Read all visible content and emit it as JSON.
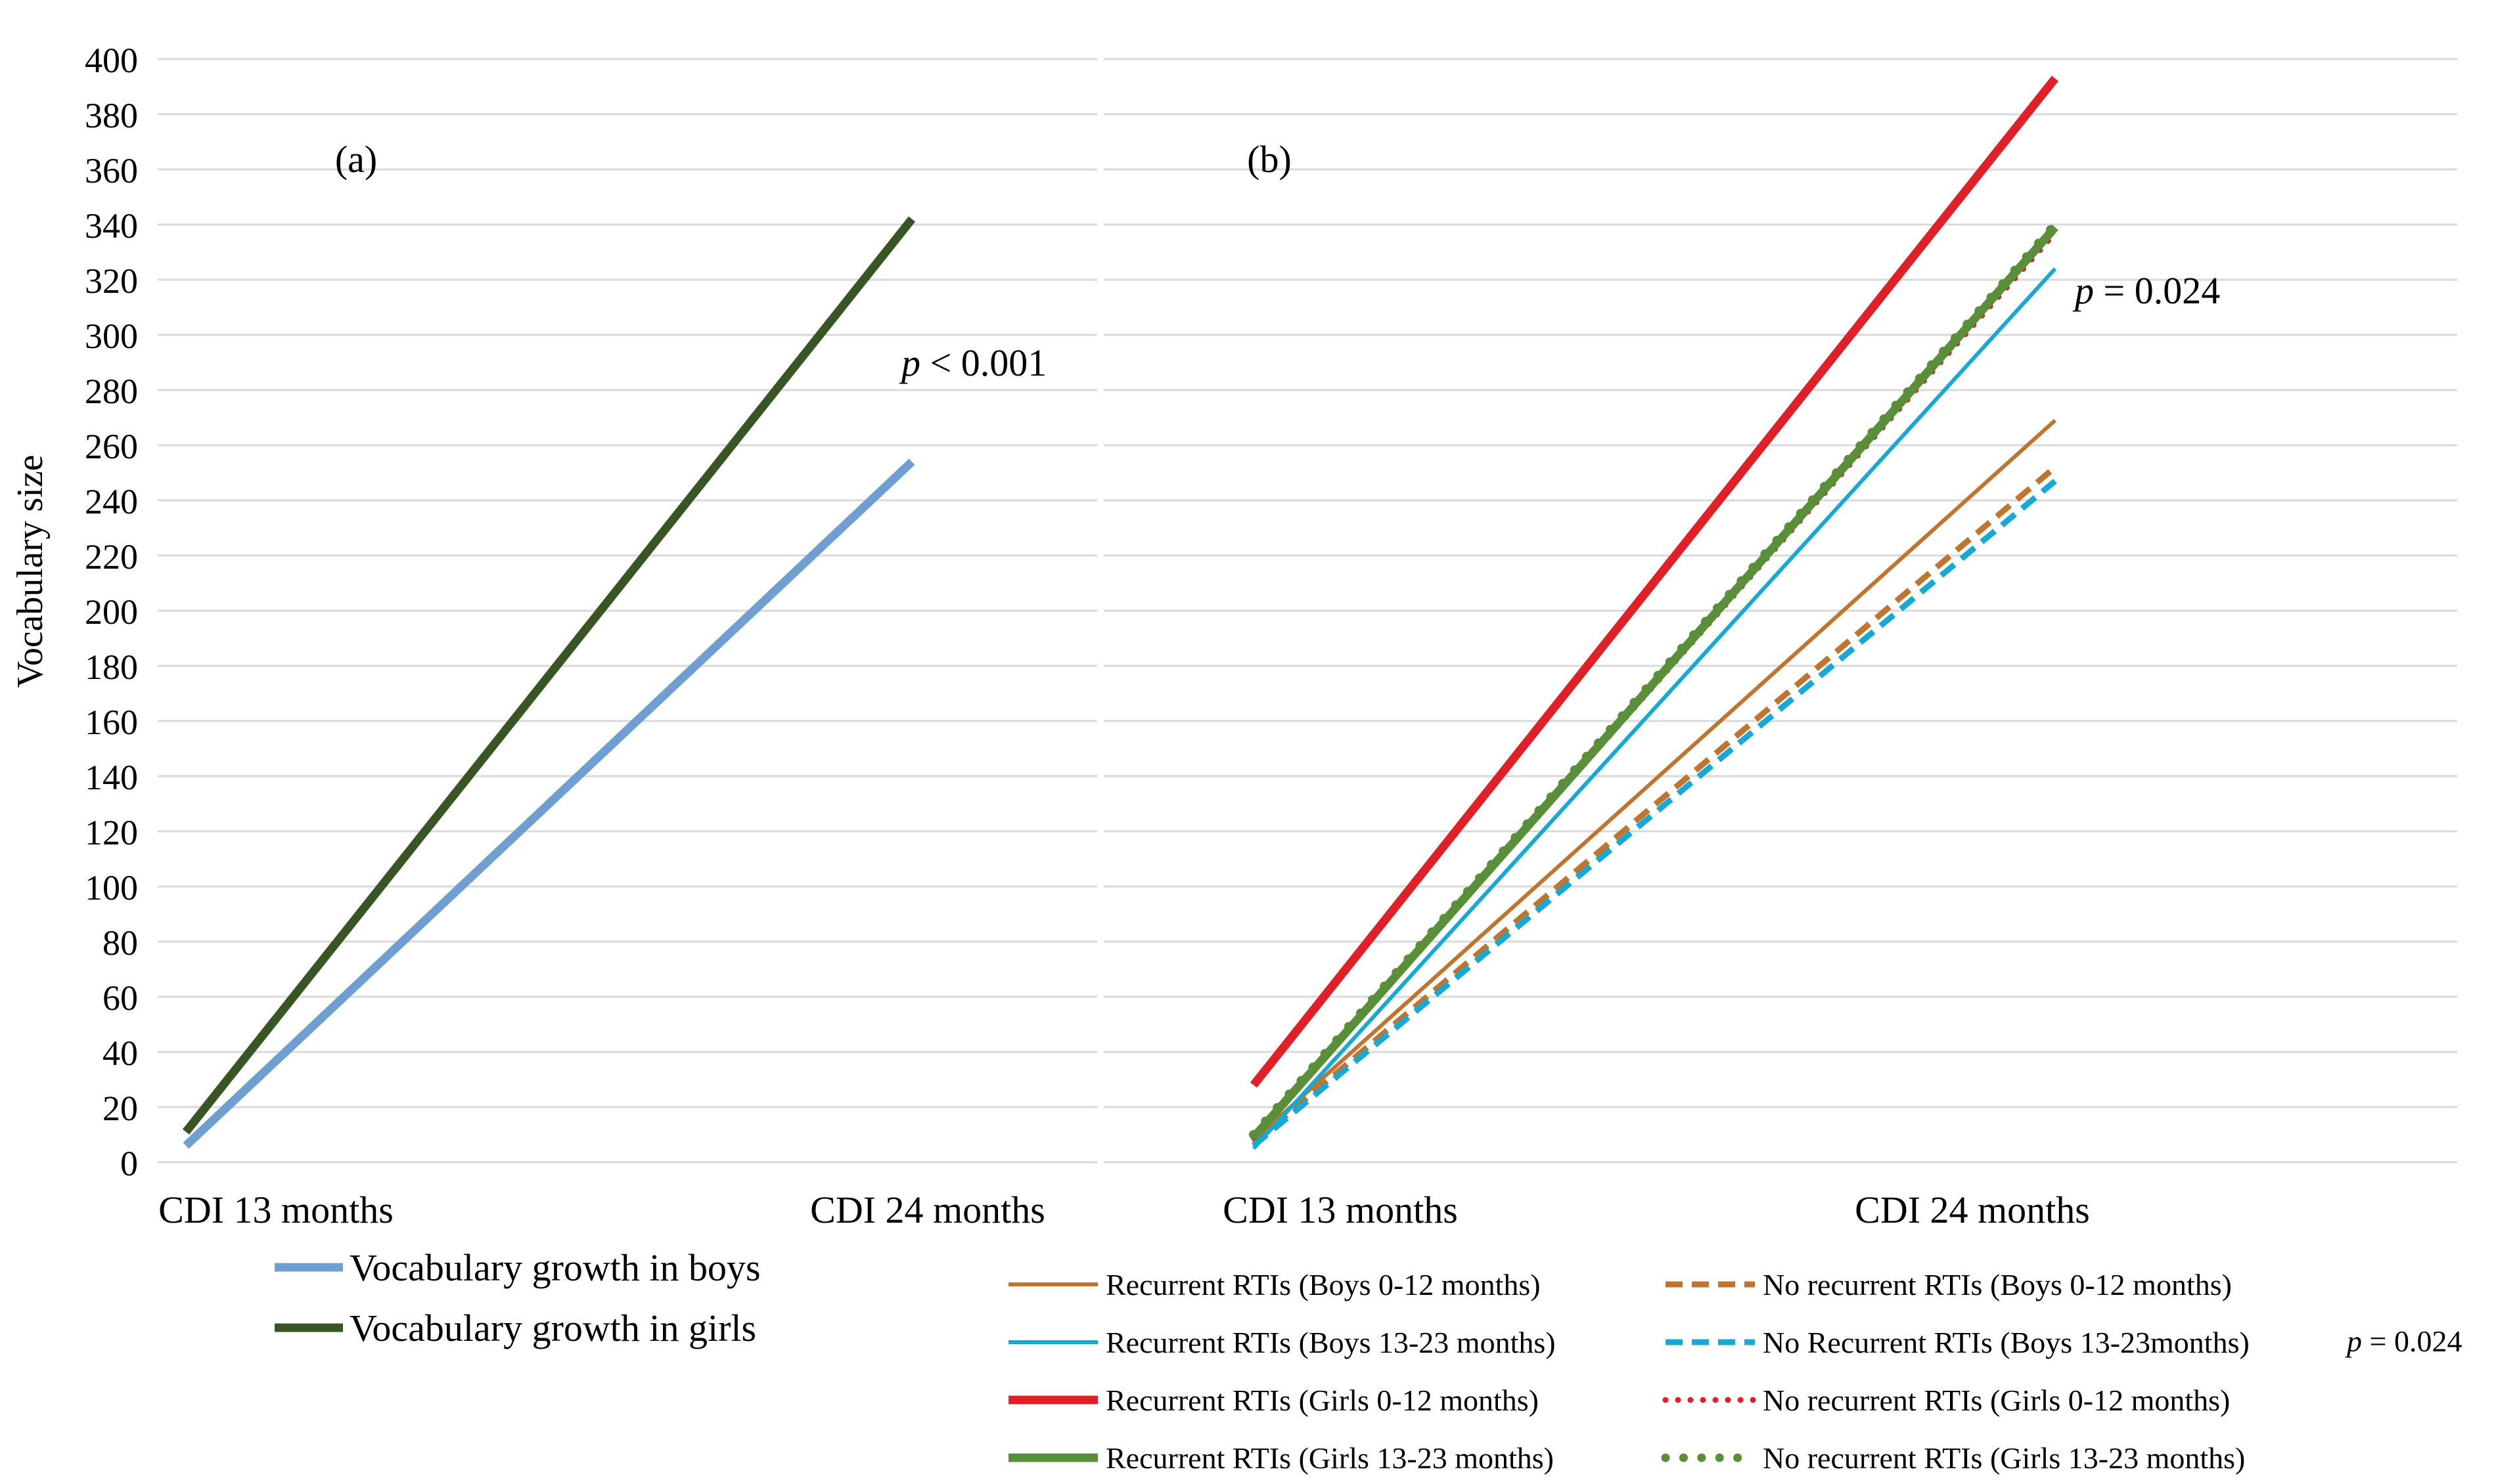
{
  "chart_data": [
    {
      "panel": "(a)",
      "type": "line",
      "x": [
        "CDI 13 months",
        "CDI 24 months"
      ],
      "ylabel": "Vocabulary size",
      "ylim": [
        0,
        400
      ],
      "yticks": [
        0,
        20,
        40,
        60,
        80,
        100,
        120,
        140,
        160,
        180,
        200,
        220,
        240,
        260,
        280,
        300,
        320,
        340,
        360,
        380,
        400
      ],
      "grid": true,
      "annotation": {
        "italic": "p",
        "rest": " < 0.001"
      },
      "series": [
        {
          "name": "Vocabulary growth in boys",
          "values": [
            6,
            254
          ],
          "color": "#6f9fd1",
          "dash": "solid",
          "weight": "thick"
        },
        {
          "name": "Vocabulary growth in girls",
          "values": [
            11,
            342
          ],
          "color": "#375623",
          "dash": "solid",
          "weight": "thick"
        }
      ]
    },
    {
      "panel": "(b)",
      "type": "line",
      "x": [
        "CDI 13 months",
        "CDI 24 months"
      ],
      "ylim": [
        0,
        400
      ],
      "grid": true,
      "annotation": {
        "italic": "p",
        "rest": " = 0.024"
      },
      "legend_note": {
        "italic": "p",
        "rest": " = 0.024"
      },
      "series": [
        {
          "name": "Recurrent RTIs (Boys 0-12 months)",
          "values": [
            8,
            269
          ],
          "color": "#c0752f",
          "dash": "solid",
          "weight": "thin"
        },
        {
          "name": "No recurrent RTIs (Boys 0-12 months)",
          "values": [
            7,
            252
          ],
          "color": "#c0752f",
          "dash": "dashed",
          "weight": "medium"
        },
        {
          "name": "Recurrent RTIs (Boys 13-23 months)",
          "values": [
            5,
            324
          ],
          "color": "#17a9d6",
          "dash": "solid",
          "weight": "thin"
        },
        {
          "name": "No Recurrent RTIs (Boys 13-23months)",
          "values": [
            6,
            247
          ],
          "color": "#17a9d6",
          "dash": "dashed",
          "weight": "medium"
        },
        {
          "name": "Recurrent RTIs (Girls 0-12 months)",
          "values": [
            28,
            393
          ],
          "color": "#e01f26",
          "dash": "solid",
          "weight": "thick"
        },
        {
          "name": "No recurrent RTIs (Girls 0-12 months)",
          "values": [
            9,
            337
          ],
          "color": "#e01f26",
          "dash": "dotted",
          "weight": "medium"
        },
        {
          "name": "Recurrent RTIs (Girls 13-23 months)",
          "values": [
            9,
            339
          ],
          "color": "#5a8f3a",
          "dash": "solid",
          "weight": "thick"
        },
        {
          "name": "No recurrent RTIs (Girls 13-23 months)",
          "values": [
            10,
            340
          ],
          "color": "#5a8f3a",
          "dash": "dotted",
          "weight": "thick"
        }
      ]
    }
  ]
}
